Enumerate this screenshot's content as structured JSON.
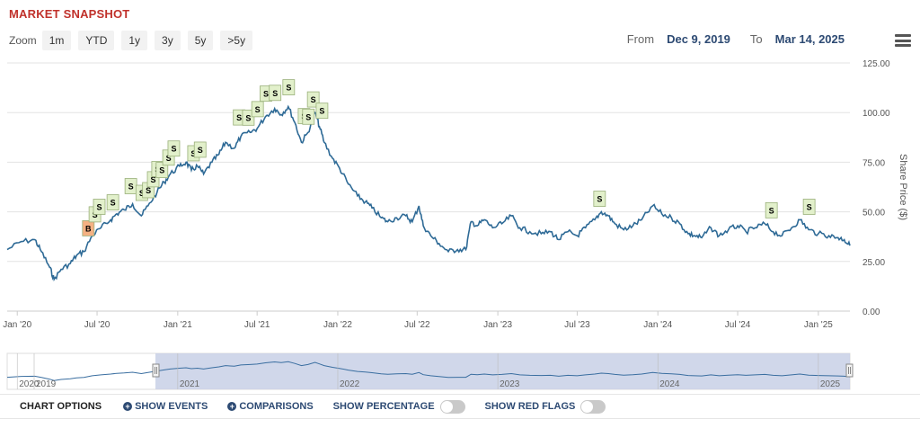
{
  "header": {
    "title": "MARKET SNAPSHOT"
  },
  "zoom": {
    "label": "Zoom",
    "buttons": [
      "1m",
      "YTD",
      "1y",
      "3y",
      "5y",
      ">5y"
    ]
  },
  "range": {
    "from_label": "From",
    "from_value": "Dec 9, 2019",
    "to_label": "To",
    "to_value": "Mar 14, 2025"
  },
  "chart_data": {
    "type": "line",
    "ylabel": "Share Price ($)",
    "ylim": [
      0,
      125
    ],
    "yticks": [
      "0.00",
      "25.00",
      "50.00",
      "75.00",
      "100.00",
      "125.00"
    ],
    "xlim": [
      "2019-12-09",
      "2025-03-14"
    ],
    "xticks": [
      {
        "date": "2020-01-01",
        "label": "Jan '20"
      },
      {
        "date": "2020-07-01",
        "label": "Jul '20"
      },
      {
        "date": "2021-01-01",
        "label": "Jan '21"
      },
      {
        "date": "2021-07-01",
        "label": "Jul '21"
      },
      {
        "date": "2022-01-01",
        "label": "Jan '22"
      },
      {
        "date": "2022-07-01",
        "label": "Jul '22"
      },
      {
        "date": "2023-01-01",
        "label": "Jan '23"
      },
      {
        "date": "2023-07-01",
        "label": "Jul '23"
      },
      {
        "date": "2024-01-01",
        "label": "Jan '24"
      },
      {
        "date": "2024-07-01",
        "label": "Jul '24"
      },
      {
        "date": "2025-01-01",
        "label": "Jan '25"
      }
    ],
    "grid": "horizontal",
    "line_color": "#2e6a96",
    "series": [
      {
        "points": [
          [
            "2019-12-09",
            31
          ],
          [
            "2020-01-10",
            35
          ],
          [
            "2020-02-10",
            36
          ],
          [
            "2020-02-25",
            30
          ],
          [
            "2020-03-15",
            22
          ],
          [
            "2020-03-25",
            16
          ],
          [
            "2020-04-10",
            21
          ],
          [
            "2020-05-01",
            24
          ],
          [
            "2020-05-15",
            28
          ],
          [
            "2020-06-01",
            30
          ],
          [
            "2020-06-20",
            38
          ],
          [
            "2020-07-10",
            42
          ],
          [
            "2020-08-01",
            46
          ],
          [
            "2020-08-15",
            49
          ],
          [
            "2020-09-01",
            51
          ],
          [
            "2020-09-20",
            54
          ],
          [
            "2020-10-10",
            48
          ],
          [
            "2020-10-25",
            53
          ],
          [
            "2020-11-15",
            60
          ],
          [
            "2020-12-01",
            65
          ],
          [
            "2020-12-15",
            69
          ],
          [
            "2021-01-05",
            73
          ],
          [
            "2021-01-20",
            75
          ],
          [
            "2021-02-01",
            71
          ],
          [
            "2021-02-15",
            73
          ],
          [
            "2021-03-01",
            69
          ],
          [
            "2021-03-20",
            75
          ],
          [
            "2021-04-05",
            79
          ],
          [
            "2021-04-20",
            85
          ],
          [
            "2021-05-10",
            82
          ],
          [
            "2021-05-25",
            88
          ],
          [
            "2021-06-15",
            90
          ],
          [
            "2021-07-01",
            92
          ],
          [
            "2021-07-20",
            98
          ],
          [
            "2021-08-10",
            102
          ],
          [
            "2021-08-25",
            99
          ],
          [
            "2021-09-10",
            103
          ],
          [
            "2021-09-25",
            95
          ],
          [
            "2021-10-10",
            85
          ],
          [
            "2021-10-25",
            90
          ],
          [
            "2021-11-10",
            100
          ],
          [
            "2021-11-20",
            93
          ],
          [
            "2021-12-01",
            85
          ],
          [
            "2021-12-20",
            77
          ],
          [
            "2022-01-05",
            72
          ],
          [
            "2022-01-25",
            64
          ],
          [
            "2022-02-15",
            58
          ],
          [
            "2022-03-05",
            55
          ],
          [
            "2022-03-20",
            52
          ],
          [
            "2022-04-10",
            47
          ],
          [
            "2022-04-25",
            45
          ],
          [
            "2022-05-15",
            47
          ],
          [
            "2022-06-05",
            48
          ],
          [
            "2022-06-20",
            45
          ],
          [
            "2022-07-05",
            53
          ],
          [
            "2022-07-15",
            43
          ],
          [
            "2022-08-01",
            38
          ],
          [
            "2022-08-20",
            34
          ],
          [
            "2022-09-10",
            30
          ],
          [
            "2022-10-01",
            31
          ],
          [
            "2022-10-20",
            31
          ],
          [
            "2022-11-01",
            45
          ],
          [
            "2022-11-15",
            43
          ],
          [
            "2022-12-01",
            46
          ],
          [
            "2022-12-20",
            42
          ],
          [
            "2023-01-10",
            44
          ],
          [
            "2023-02-01",
            48
          ],
          [
            "2023-02-20",
            42
          ],
          [
            "2023-03-15",
            40
          ],
          [
            "2023-04-10",
            39
          ],
          [
            "2023-05-01",
            40
          ],
          [
            "2023-05-20",
            36
          ],
          [
            "2023-06-10",
            40
          ],
          [
            "2023-07-01",
            38
          ],
          [
            "2023-07-20",
            42
          ],
          [
            "2023-08-10",
            46
          ],
          [
            "2023-08-25",
            50
          ],
          [
            "2023-09-10",
            48
          ],
          [
            "2023-09-25",
            44
          ],
          [
            "2023-10-15",
            41
          ],
          [
            "2023-11-05",
            43
          ],
          [
            "2023-11-25",
            46
          ],
          [
            "2023-12-20",
            53
          ],
          [
            "2024-01-10",
            49
          ],
          [
            "2024-02-01",
            47
          ],
          [
            "2024-02-20",
            44
          ],
          [
            "2024-03-10",
            39
          ],
          [
            "2024-03-25",
            38
          ],
          [
            "2024-04-10",
            37
          ],
          [
            "2024-05-01",
            42
          ],
          [
            "2024-05-20",
            38
          ],
          [
            "2024-06-10",
            41
          ],
          [
            "2024-07-01",
            43
          ],
          [
            "2024-07-20",
            40
          ],
          [
            "2024-08-10",
            42
          ],
          [
            "2024-09-01",
            44
          ],
          [
            "2024-09-20",
            40
          ],
          [
            "2024-10-10",
            38
          ],
          [
            "2024-11-01",
            42
          ],
          [
            "2024-11-20",
            46
          ],
          [
            "2024-12-10",
            41
          ],
          [
            "2025-01-01",
            39
          ],
          [
            "2025-01-25",
            38
          ],
          [
            "2025-02-15",
            37
          ],
          [
            "2025-03-01",
            36
          ],
          [
            "2025-03-14",
            33
          ]
        ]
      }
    ],
    "flags": [
      {
        "date": "2020-06-10",
        "label": "B",
        "color": "#f4b183"
      },
      {
        "date": "2020-06-25",
        "label": "S",
        "color": "#e2f0cb"
      },
      {
        "date": "2020-07-05",
        "label": "S",
        "color": "#e2f0cb"
      },
      {
        "date": "2020-08-05",
        "label": "S",
        "color": "#e2f0cb"
      },
      {
        "date": "2020-09-15",
        "label": "S",
        "color": "#e2f0cb"
      },
      {
        "date": "2020-10-10",
        "label": "S",
        "color": "#e2f0cb"
      },
      {
        "date": "2020-10-25",
        "label": "S",
        "color": "#e2f0cb"
      },
      {
        "date": "2020-11-05",
        "label": "S",
        "color": "#e2f0cb"
      },
      {
        "date": "2020-11-15",
        "label": "S",
        "color": "#e2f0cb"
      },
      {
        "date": "2020-11-25",
        "label": "S",
        "color": "#e2f0cb"
      },
      {
        "date": "2020-12-10",
        "label": "S",
        "color": "#e2f0cb"
      },
      {
        "date": "2020-12-22",
        "label": "S",
        "color": "#e2f0cb"
      },
      {
        "date": "2021-02-05",
        "label": "S",
        "color": "#e2f0cb"
      },
      {
        "date": "2021-02-20",
        "label": "S",
        "color": "#e2f0cb"
      },
      {
        "date": "2021-05-20",
        "label": "S",
        "color": "#e2f0cb"
      },
      {
        "date": "2021-06-10",
        "label": "S",
        "color": "#e2f0cb"
      },
      {
        "date": "2021-07-01",
        "label": "S",
        "color": "#e2f0cb"
      },
      {
        "date": "2021-07-20",
        "label": "S",
        "color": "#e2f0cb"
      },
      {
        "date": "2021-08-10",
        "label": "S",
        "color": "#e2f0cb"
      },
      {
        "date": "2021-09-10",
        "label": "S",
        "color": "#e2f0cb"
      },
      {
        "date": "2021-10-15",
        "label": "S",
        "color": "#e2f0cb"
      },
      {
        "date": "2021-10-25",
        "label": "S",
        "color": "#e2f0cb"
      },
      {
        "date": "2021-11-05",
        "label": "S",
        "color": "#e2f0cb"
      },
      {
        "date": "2021-11-25",
        "label": "S",
        "color": "#e2f0cb"
      },
      {
        "date": "2023-08-20",
        "label": "S",
        "color": "#e2f0cb"
      },
      {
        "date": "2024-09-15",
        "label": "S",
        "color": "#e2f0cb"
      },
      {
        "date": "2024-12-10",
        "label": "S",
        "color": "#e2f0cb"
      }
    ],
    "navigator": {
      "labels": [
        "2019",
        "2020",
        "2021",
        "2022",
        "2023",
        "2024",
        "2025"
      ],
      "selected_from": "2019-12-09",
      "selected_to": "2025-03-14"
    }
  },
  "options": {
    "title": "CHART OPTIONS",
    "show_events": "SHOW EVENTS",
    "comparisons": "COMPARISONS",
    "show_percentage": "SHOW PERCENTAGE",
    "show_red_flags": "SHOW RED FLAGS"
  }
}
